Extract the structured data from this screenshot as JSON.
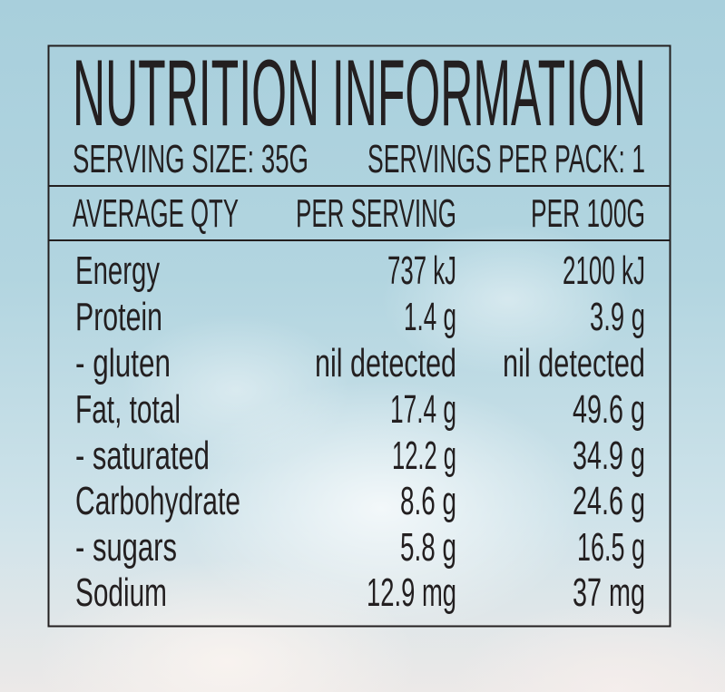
{
  "title": "NUTRITION INFORMATION",
  "serving_size": "SERVING SIZE: 35G",
  "servings_per_pack": "SERVINGS PER PACK: 1",
  "columns": [
    "AVERAGE QTY",
    "PER SERVING",
    "PER 100G"
  ],
  "rows": [
    {
      "label": "Energy",
      "per_serving": "737 kJ",
      "per_100g": "2100 kJ"
    },
    {
      "label": "Protein",
      "per_serving": "1.4 g",
      "per_100g": "3.9 g"
    },
    {
      "label": "- gluten",
      "per_serving": "nil detected",
      "per_100g": "nil detected"
    },
    {
      "label": "Fat, total",
      "per_serving": "17.4 g",
      "per_100g": "49.6 g"
    },
    {
      "label": "- saturated",
      "per_serving": "12.2 g",
      "per_100g": "34.9 g"
    },
    {
      "label": "Carbohydrate",
      "per_serving": "8.6 g",
      "per_100g": "24.6 g"
    },
    {
      "label": "- sugars",
      "per_serving": "5.8 g",
      "per_100g": "16.5 g"
    },
    {
      "label": "Sodium",
      "per_serving": "12.9 mg",
      "per_100g": "37 mg"
    }
  ],
  "colors": {
    "text": "#231f20",
    "border": "#231f20",
    "background": "#a8cfdc"
  }
}
